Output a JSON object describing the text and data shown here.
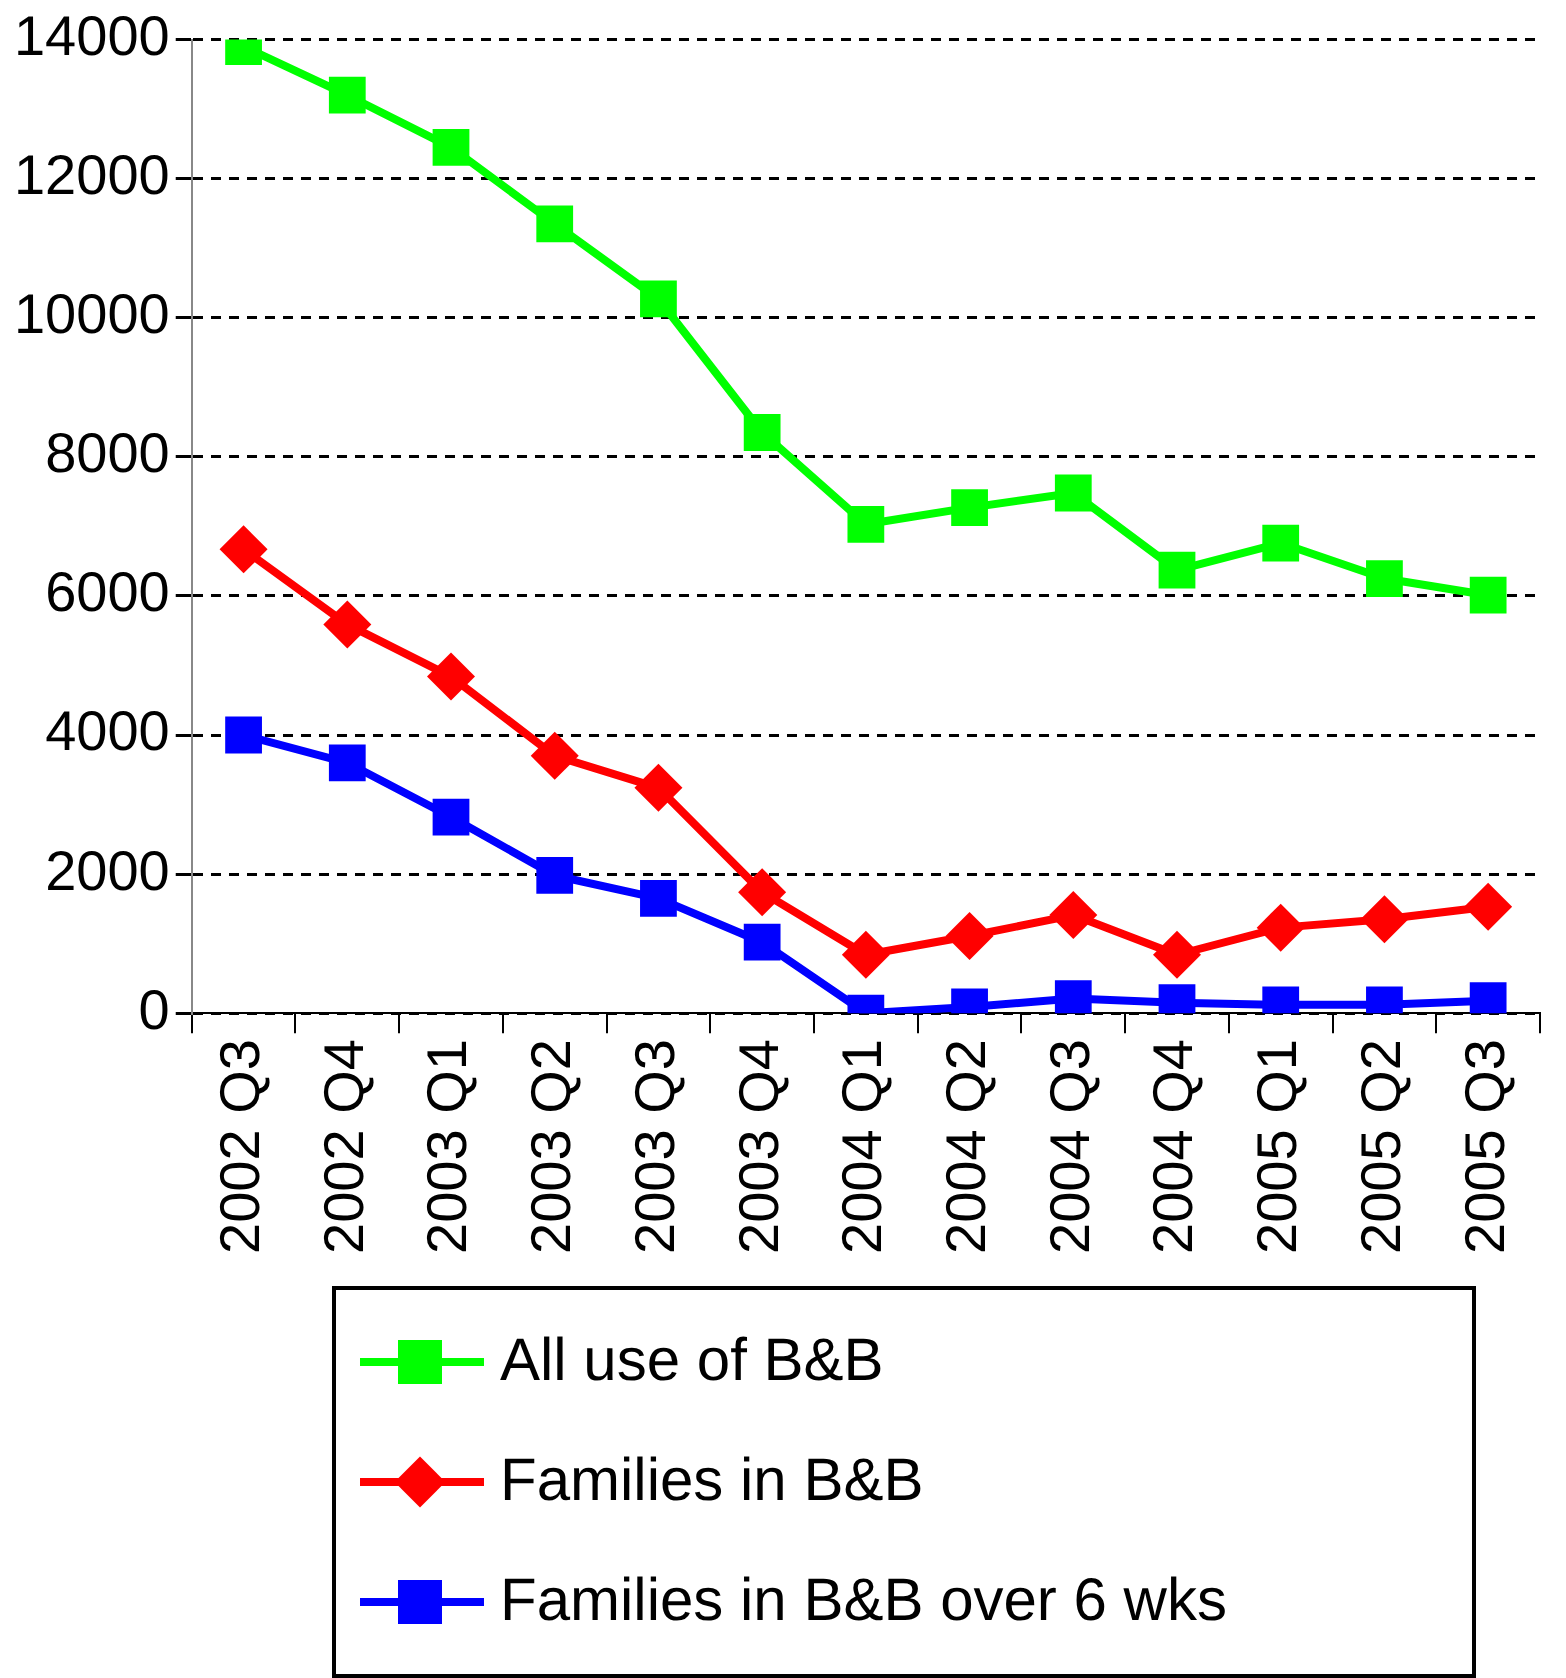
{
  "chart_data": {
    "type": "line",
    "categories": [
      "2002 Q3",
      "2002 Q4",
      "2003 Q1",
      "2003 Q2",
      "2003 Q3",
      "2003 Q4",
      "2004 Q1",
      "2004 Q2",
      "2004 Q3",
      "2004 Q4",
      "2005 Q1",
      "2005 Q2",
      "2005 Q3"
    ],
    "series": [
      {
        "name": "All use of B&B",
        "color": "#00ff00",
        "marker": "square",
        "values": [
          13900,
          13200,
          12450,
          11350,
          10270,
          8350,
          7030,
          7270,
          7480,
          6370,
          6760,
          6250,
          6010
        ]
      },
      {
        "name": "Families in B&B",
        "color": "#ff0000",
        "marker": "diamond",
        "values": [
          6670,
          5590,
          4840,
          3700,
          3240,
          1740,
          840,
          1110,
          1410,
          840,
          1230,
          1350,
          1530
        ]
      },
      {
        "name": "Families in B&B over 6 wks",
        "color": "#0000ff",
        "marker": "square",
        "values": [
          4000,
          3600,
          2820,
          1980,
          1650,
          1020,
          0,
          90,
          210,
          150,
          120,
          120,
          180
        ]
      }
    ],
    "ylim": [
      0,
      14000
    ],
    "yticks": [
      0,
      2000,
      4000,
      6000,
      8000,
      10000,
      12000,
      14000
    ],
    "grid": "y",
    "legend": "bottom"
  }
}
